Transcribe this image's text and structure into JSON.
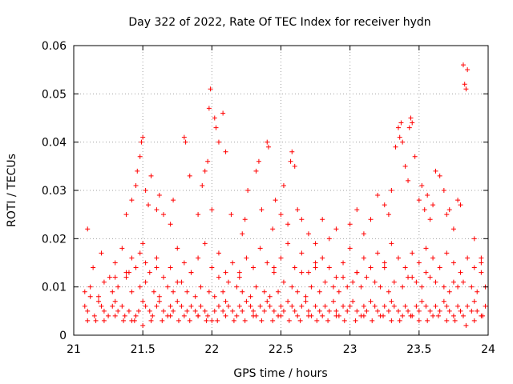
{
  "chart_data": {
    "type": "scatter",
    "title": "Day 322 of 2022, Rate Of TEC Index for receiver hydn",
    "xlabel": "GPS time / hours",
    "ylabel": "ROTI / TECUs",
    "xlim": [
      21,
      24
    ],
    "ylim": [
      0,
      0.06
    ],
    "xticks": [
      "21",
      "21.5",
      "22",
      "22.5",
      "23",
      "23.5",
      "24"
    ],
    "yticks": [
      "0",
      "0.01",
      "0.02",
      "0.03",
      "0.04",
      "0.05",
      "0.06"
    ],
    "grid": true,
    "marker": "+",
    "color": "#ff0000",
    "series": [
      {
        "x": [
          21.08,
          21.1,
          21.12,
          21.15,
          21.18,
          21.2,
          21.22,
          21.25,
          21.28,
          21.3,
          21.32,
          21.35,
          21.37,
          21.4,
          21.42,
          21.45,
          21.47,
          21.5,
          21.52,
          21.55,
          21.57,
          21.6,
          21.62,
          21.65,
          21.68,
          21.7,
          21.72,
          21.75,
          21.78,
          21.8,
          21.82,
          21.85,
          21.88,
          21.9,
          21.92,
          21.95,
          21.97,
          22.0,
          22.02,
          22.05,
          22.08,
          22.1,
          22.12,
          22.15,
          22.18,
          22.2,
          22.22,
          22.25,
          22.28,
          22.3,
          22.32,
          22.35,
          22.38,
          22.4,
          22.42,
          22.45,
          22.48,
          22.5,
          22.52,
          22.55,
          22.58,
          22.6,
          22.62,
          22.65,
          22.68,
          22.7,
          22.72,
          22.75,
          22.78,
          22.8,
          22.82,
          22.85,
          22.88,
          22.9,
          22.92,
          22.95,
          22.98,
          23.0,
          23.02,
          23.05,
          23.08,
          23.1,
          23.12,
          23.15,
          23.18,
          23.2,
          23.22,
          23.25,
          23.28,
          23.3,
          23.32,
          23.35,
          23.38,
          23.4,
          23.42,
          23.45,
          23.48,
          23.5,
          23.52,
          23.55,
          23.58,
          23.6,
          23.62,
          23.65,
          23.68,
          23.7,
          23.72,
          23.75,
          23.78,
          23.8,
          23.82,
          23.85,
          23.88,
          23.9,
          23.92,
          23.95,
          23.98,
          21.08,
          21.12,
          21.18,
          21.22,
          21.28,
          21.32,
          21.38,
          21.42,
          21.48,
          21.52,
          21.58,
          21.62,
          21.68,
          21.72,
          21.78,
          21.82,
          21.88,
          21.92,
          21.98,
          22.02,
          22.08,
          22.12,
          22.18,
          22.22,
          22.28,
          22.32,
          22.38,
          22.42,
          22.48,
          22.52,
          22.58,
          22.62,
          22.68,
          22.72,
          22.78,
          22.82,
          22.88,
          22.92,
          22.98,
          23.02,
          23.08,
          23.12,
          23.18,
          23.22,
          23.28,
          23.32,
          23.38,
          23.42,
          23.48,
          23.52,
          23.58,
          23.62,
          23.68,
          23.72,
          23.78,
          23.82,
          23.88,
          23.92,
          23.98,
          21.1,
          21.16,
          21.22,
          21.3,
          21.36,
          21.44,
          21.5,
          21.56,
          21.64,
          21.7,
          21.76,
          21.84,
          21.9,
          21.96,
          22.04,
          22.1,
          22.16,
          22.24,
          22.3,
          22.36,
          22.44,
          22.5,
          22.56,
          22.64,
          22.7,
          22.76,
          22.84,
          22.9,
          22.96,
          23.04,
          23.1,
          23.16,
          23.24,
          23.3,
          23.36,
          23.44,
          23.5,
          23.56,
          23.64,
          23.7,
          23.76,
          23.84,
          23.9,
          23.96,
          21.1,
          21.14,
          21.2,
          21.26,
          21.3,
          21.35,
          21.38,
          21.42,
          21.45,
          21.48,
          21.5,
          21.52,
          21.55,
          21.6,
          21.65,
          21.7,
          21.75,
          21.8,
          21.85,
          21.9,
          21.95,
          22.0,
          22.05,
          22.1,
          22.15,
          22.2,
          22.25,
          22.3,
          22.35,
          22.4,
          22.45,
          22.5,
          22.55,
          22.6,
          22.65,
          22.7,
          22.75,
          22.8,
          22.85,
          22.9,
          22.95,
          23.0,
          23.05,
          23.1,
          23.15,
          23.2,
          23.25,
          23.3,
          23.35,
          23.4,
          23.45,
          23.5,
          23.55,
          23.6,
          23.65,
          23.7,
          23.75,
          23.8,
          23.85,
          23.9,
          23.95,
          21.38,
          21.42,
          21.45,
          21.46,
          21.48,
          21.49,
          21.5,
          21.52,
          21.54,
          21.56,
          21.6,
          21.62,
          21.65,
          21.7,
          21.72,
          21.8,
          21.81,
          21.84,
          21.9,
          21.93,
          21.95,
          21.97,
          21.98,
          21.99,
          22.0,
          22.02,
          22.03,
          22.05,
          22.08,
          22.1,
          22.14,
          22.22,
          22.24,
          22.26,
          22.32,
          22.34,
          22.36,
          22.4,
          22.41,
          22.44,
          22.46,
          22.5,
          22.52,
          22.55,
          22.57,
          22.58,
          22.6,
          22.62,
          22.65,
          22.7,
          22.75,
          22.8,
          22.85,
          22.9,
          23.0,
          23.05,
          23.1,
          23.15,
          23.2,
          23.25,
          23.28,
          23.3,
          23.33,
          23.35,
          23.36,
          23.37,
          23.38,
          23.4,
          23.42,
          23.43,
          23.44,
          23.45,
          23.47,
          23.5,
          23.52,
          23.54,
          23.56,
          23.58,
          23.6,
          23.62,
          23.65,
          23.68,
          23.7,
          23.72,
          23.75,
          23.78,
          23.8,
          23.82,
          23.83,
          23.84,
          23.85,
          23.9,
          23.95,
          21.3,
          21.4,
          21.6,
          21.75,
          21.85,
          22.05,
          22.2,
          22.45,
          22.65,
          22.75,
          22.95,
          23.05,
          23.25,
          23.45,
          23.55,
          23.75,
          23.95
        ],
        "y": [
          0.006,
          0.005,
          0.008,
          0.004,
          0.007,
          0.006,
          0.005,
          0.004,
          0.006,
          0.007,
          0.005,
          0.006,
          0.004,
          0.005,
          0.003,
          0.004,
          0.005,
          0.007,
          0.006,
          0.005,
          0.004,
          0.006,
          0.007,
          0.005,
          0.004,
          0.006,
          0.005,
          0.007,
          0.006,
          0.004,
          0.005,
          0.006,
          0.005,
          0.004,
          0.006,
          0.005,
          0.004,
          0.003,
          0.005,
          0.006,
          0.005,
          0.007,
          0.006,
          0.005,
          0.004,
          0.006,
          0.005,
          0.007,
          0.006,
          0.005,
          0.004,
          0.006,
          0.005,
          0.007,
          0.006,
          0.005,
          0.004,
          0.006,
          0.005,
          0.007,
          0.006,
          0.005,
          0.004,
          0.006,
          0.007,
          0.005,
          0.004,
          0.006,
          0.005,
          0.004,
          0.006,
          0.005,
          0.007,
          0.005,
          0.004,
          0.006,
          0.005,
          0.006,
          0.007,
          0.005,
          0.004,
          0.006,
          0.005,
          0.007,
          0.006,
          0.005,
          0.004,
          0.006,
          0.005,
          0.007,
          0.006,
          0.005,
          0.004,
          0.006,
          0.005,
          0.004,
          0.006,
          0.005,
          0.007,
          0.006,
          0.005,
          0.004,
          0.006,
          0.005,
          0.007,
          0.006,
          0.005,
          0.004,
          0.006,
          0.005,
          0.004,
          0.006,
          0.005,
          0.007,
          0.005,
          0.004,
          0.006,
          0.009,
          0.01,
          0.008,
          0.011,
          0.009,
          0.01,
          0.012,
          0.009,
          0.01,
          0.011,
          0.009,
          0.008,
          0.01,
          0.009,
          0.011,
          0.009,
          0.008,
          0.01,
          0.009,
          0.008,
          0.009,
          0.011,
          0.01,
          0.009,
          0.008,
          0.01,
          0.009,
          0.008,
          0.009,
          0.011,
          0.01,
          0.009,
          0.008,
          0.01,
          0.009,
          0.011,
          0.01,
          0.009,
          0.01,
          0.011,
          0.01,
          0.012,
          0.011,
          0.01,
          0.009,
          0.011,
          0.01,
          0.012,
          0.011,
          0.01,
          0.012,
          0.011,
          0.01,
          0.009,
          0.01,
          0.011,
          0.01,
          0.009,
          0.01,
          0.003,
          0.003,
          0.003,
          0.004,
          0.003,
          0.003,
          0.002,
          0.003,
          0.003,
          0.004,
          0.003,
          0.003,
          0.004,
          0.003,
          0.003,
          0.004,
          0.003,
          0.003,
          0.004,
          0.003,
          0.003,
          0.004,
          0.003,
          0.003,
          0.004,
          0.003,
          0.003,
          0.004,
          0.003,
          0.003,
          0.004,
          0.003,
          0.004,
          0.003,
          0.003,
          0.004,
          0.003,
          0.003,
          0.004,
          0.003,
          0.003,
          0.002,
          0.003,
          0.004,
          0.022,
          0.014,
          0.017,
          0.012,
          0.015,
          0.018,
          0.013,
          0.016,
          0.014,
          0.017,
          0.019,
          0.015,
          0.013,
          0.016,
          0.012,
          0.014,
          0.018,
          0.015,
          0.013,
          0.016,
          0.019,
          0.014,
          0.017,
          0.013,
          0.015,
          0.012,
          0.016,
          0.014,
          0.018,
          0.015,
          0.013,
          0.016,
          0.019,
          0.014,
          0.017,
          0.013,
          0.015,
          0.016,
          0.014,
          0.012,
          0.015,
          0.018,
          0.013,
          0.016,
          0.014,
          0.017,
          0.015,
          0.019,
          0.016,
          0.014,
          0.017,
          0.015,
          0.018,
          0.016,
          0.014,
          0.017,
          0.015,
          0.013,
          0.016,
          0.014,
          0.015,
          0.025,
          0.028,
          0.031,
          0.034,
          0.037,
          0.04,
          0.041,
          0.03,
          0.027,
          0.033,
          0.026,
          0.029,
          0.025,
          0.023,
          0.028,
          0.041,
          0.04,
          0.033,
          0.025,
          0.031,
          0.034,
          0.036,
          0.047,
          0.051,
          0.026,
          0.045,
          0.043,
          0.04,
          0.046,
          0.038,
          0.025,
          0.021,
          0.024,
          0.03,
          0.034,
          0.036,
          0.026,
          0.04,
          0.039,
          0.022,
          0.028,
          0.025,
          0.031,
          0.023,
          0.036,
          0.038,
          0.035,
          0.026,
          0.024,
          0.021,
          0.019,
          0.024,
          0.02,
          0.022,
          0.023,
          0.026,
          0.021,
          0.024,
          0.029,
          0.027,
          0.025,
          0.03,
          0.039,
          0.043,
          0.041,
          0.044,
          0.04,
          0.035,
          0.032,
          0.043,
          0.045,
          0.044,
          0.037,
          0.028,
          0.031,
          0.026,
          0.029,
          0.024,
          0.027,
          0.034,
          0.033,
          0.03,
          0.025,
          0.026,
          0.022,
          0.028,
          0.027,
          0.056,
          0.052,
          0.051,
          0.055,
          0.02,
          0.016,
          0.012,
          0.013,
          0.014,
          0.011,
          0.013,
          0.012,
          0.013,
          0.014,
          0.013,
          0.014,
          0.012,
          0.013,
          0.014,
          0.012,
          0.013,
          0.011,
          0.013
        ]
      }
    ]
  }
}
